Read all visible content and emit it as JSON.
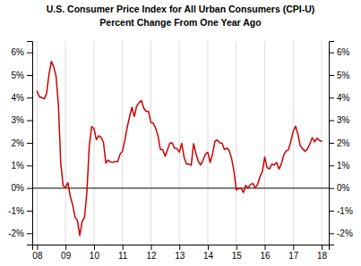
{
  "chart_data": {
    "type": "line",
    "title": "U.S. Consumer Price Index for All Urban Consumers (CPI-U)",
    "subtitle": "Percent Change From One Year Ago",
    "color": "#cc0000",
    "grid": "x",
    "xlim": [
      2007.83,
      2018.25
    ],
    "xticks": [
      {
        "value": 2008,
        "label": "08"
      },
      {
        "value": 2009,
        "label": "09"
      },
      {
        "value": 2010,
        "label": "10"
      },
      {
        "value": 2011,
        "label": "11"
      },
      {
        "value": 2012,
        "label": "12"
      },
      {
        "value": 2013,
        "label": "13"
      },
      {
        "value": 2014,
        "label": "14"
      },
      {
        "value": 2015,
        "label": "15"
      },
      {
        "value": 2016,
        "label": "16"
      },
      {
        "value": 2017,
        "label": "17"
      },
      {
        "value": 2018,
        "label": "18"
      }
    ],
    "ylim": [
      -2.5,
      6.5
    ],
    "yticks": [
      {
        "value": -2,
        "label": "-2%"
      },
      {
        "value": -1,
        "label": "-1%"
      },
      {
        "value": 0,
        "label": "0%"
      },
      {
        "value": 1,
        "label": "1%"
      },
      {
        "value": 2,
        "label": "2%"
      },
      {
        "value": 3,
        "label": "3%"
      },
      {
        "value": 4,
        "label": "4%"
      },
      {
        "value": 5,
        "label": "5%"
      },
      {
        "value": 6,
        "label": "6%"
      }
    ],
    "y2lim": [
      -2.5,
      6.5
    ],
    "y2ticks": [
      {
        "value": -2,
        "label": "-2%"
      },
      {
        "value": -1,
        "label": "-1%"
      },
      {
        "value": 0,
        "label": "0%"
      },
      {
        "value": 1,
        "label": "1%"
      },
      {
        "value": 2,
        "label": "2%"
      },
      {
        "value": 3,
        "label": "3%"
      },
      {
        "value": 4,
        "label": "4%"
      },
      {
        "value": 5,
        "label": "5%"
      },
      {
        "value": 6,
        "label": "6%"
      }
    ],
    "x": [
      2008.0,
      2008.083,
      2008.167,
      2008.25,
      2008.333,
      2008.417,
      2008.5,
      2008.583,
      2008.667,
      2008.75,
      2008.833,
      2008.917,
      2009.0,
      2009.083,
      2009.167,
      2009.25,
      2009.333,
      2009.417,
      2009.5,
      2009.583,
      2009.667,
      2009.75,
      2009.833,
      2009.917,
      2010.0,
      2010.083,
      2010.167,
      2010.25,
      2010.333,
      2010.417,
      2010.5,
      2010.583,
      2010.667,
      2010.75,
      2010.833,
      2010.917,
      2011.0,
      2011.083,
      2011.167,
      2011.25,
      2011.333,
      2011.417,
      2011.5,
      2011.583,
      2011.667,
      2011.75,
      2011.833,
      2011.917,
      2012.0,
      2012.083,
      2012.167,
      2012.25,
      2012.333,
      2012.417,
      2012.5,
      2012.583,
      2012.667,
      2012.75,
      2012.833,
      2012.917,
      2013.0,
      2013.083,
      2013.167,
      2013.25,
      2013.333,
      2013.417,
      2013.5,
      2013.583,
      2013.667,
      2013.75,
      2013.833,
      2013.917,
      2014.0,
      2014.083,
      2014.167,
      2014.25,
      2014.333,
      2014.417,
      2014.5,
      2014.583,
      2014.667,
      2014.75,
      2014.833,
      2014.917,
      2015.0,
      2015.083,
      2015.167,
      2015.25,
      2015.333,
      2015.417,
      2015.5,
      2015.583,
      2015.667,
      2015.75,
      2015.833,
      2015.917,
      2016.0,
      2016.083,
      2016.167,
      2016.25,
      2016.333,
      2016.417,
      2016.5,
      2016.583,
      2016.667,
      2016.75,
      2016.833,
      2016.917,
      2017.0,
      2017.083,
      2017.167,
      2017.25,
      2017.333,
      2017.417,
      2017.5,
      2017.583,
      2017.667,
      2017.75,
      2017.833,
      2017.917,
      2018.0
    ],
    "values": [
      4.28,
      4.03,
      4.0,
      3.94,
      4.18,
      5.02,
      5.6,
      5.37,
      4.94,
      3.66,
      1.07,
      0.09,
      0.03,
      0.24,
      -0.38,
      -0.74,
      -1.28,
      -1.43,
      -2.1,
      -1.48,
      -1.29,
      -0.18,
      1.84,
      2.72,
      2.63,
      2.14,
      2.31,
      2.24,
      2.02,
      1.1,
      1.24,
      1.15,
      1.14,
      1.17,
      1.17,
      1.5,
      1.63,
      2.11,
      2.68,
      3.16,
      3.57,
      3.16,
      3.63,
      3.77,
      3.87,
      3.53,
      3.39,
      3.39,
      2.9,
      2.87,
      2.65,
      2.3,
      1.7,
      1.7,
      1.41,
      1.69,
      1.99,
      2.0,
      1.76,
      1.74,
      1.59,
      1.98,
      1.36,
      1.06,
      1.06,
      1.01,
      1.96,
      1.52,
      1.18,
      1.02,
      1.24,
      1.5,
      1.58,
      1.13,
      1.51,
      2.07,
      2.13,
      2.0,
      1.99,
      1.7,
      1.77,
      1.66,
      1.32,
      0.76,
      -0.09,
      -0.01,
      0.0,
      -0.2,
      0.12,
      0.0,
      0.17,
      0.2,
      0.0,
      0.17,
      0.5,
      0.73,
      1.37,
      0.9,
      0.85,
      1.06,
      1.02,
      1.13,
      0.84,
      1.06,
      1.46,
      1.64,
      1.69,
      2.07,
      2.5,
      2.74,
      2.38,
      1.87,
      1.73,
      1.63,
      1.73,
      1.94,
      2.23,
      2.04,
      2.2,
      2.11,
      2.07
    ]
  }
}
